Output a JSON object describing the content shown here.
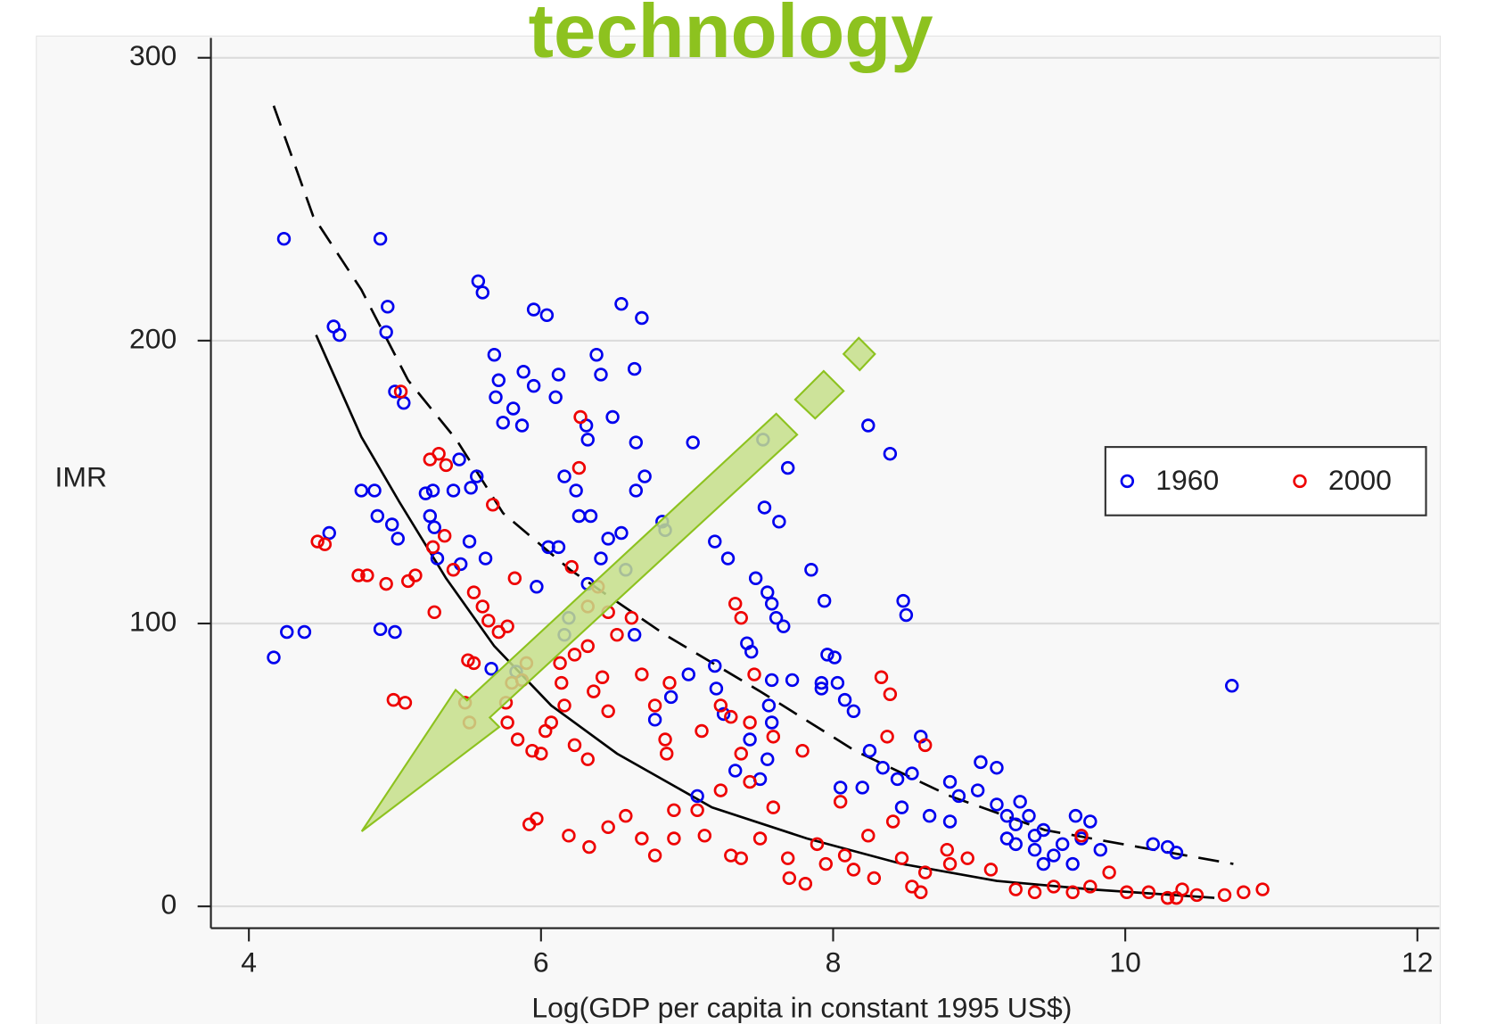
{
  "chart_data": {
    "type": "scatter",
    "title": "technology",
    "title_color": "#8dc21f",
    "xlabel": "Log(GDP per capita in constant 1995 US$)",
    "ylabel": "IMR",
    "xlim": [
      3.74,
      12.15
    ],
    "ylim": [
      -7.7,
      307
    ],
    "xticks": [
      4,
      6,
      8,
      10,
      12
    ],
    "yticks": [
      0,
      100,
      200,
      300
    ],
    "grid": true,
    "legend_position": "right",
    "series": [
      {
        "name": "1960",
        "color": "#0000ee",
        "x": [
          4.24,
          4.9,
          4.17,
          4.26,
          4.38,
          4.58,
          4.62,
          4.95,
          4.94,
          5.0,
          5.06,
          4.55,
          4.77,
          4.86,
          4.88,
          4.98,
          5.02,
          4.9,
          5.0,
          5.21,
          5.26,
          5.24,
          5.27,
          5.44,
          5.4,
          5.56,
          5.52,
          5.51,
          5.62,
          5.29,
          5.45,
          5.57,
          5.6,
          5.68,
          5.71,
          5.69,
          5.74,
          5.81,
          5.87,
          5.88,
          5.95,
          5.95,
          6.04,
          6.12,
          6.1,
          6.05,
          6.12,
          6.16,
          6.24,
          6.26,
          6.34,
          6.38,
          6.41,
          6.31,
          6.32,
          6.49,
          6.55,
          6.69,
          6.64,
          6.65,
          6.65,
          6.71,
          6.83,
          6.85,
          7.04,
          6.46,
          6.55,
          6.41,
          6.32,
          6.58,
          5.97,
          6.19,
          6.16,
          5.66,
          5.83,
          6.64,
          6.89,
          6.78,
          7.01,
          7.19,
          7.2,
          7.25,
          7.07,
          7.19,
          7.28,
          7.47,
          7.55,
          7.58,
          7.61,
          7.66,
          7.41,
          7.44,
          7.52,
          7.69,
          7.53,
          7.63,
          7.58,
          7.72,
          7.92,
          8.03,
          7.85,
          7.94,
          7.96,
          8.01,
          7.92,
          8.08,
          8.14,
          7.43,
          7.56,
          7.58,
          7.55,
          7.33,
          7.5,
          8.24,
          8.39,
          8.48,
          8.5,
          8.25,
          8.34,
          8.44,
          8.6,
          8.2,
          8.05,
          8.54,
          8.8,
          9.01,
          9.12,
          8.86,
          8.99,
          8.47,
          8.66,
          8.8,
          9.12,
          9.19,
          9.28,
          9.25,
          9.34,
          9.38,
          9.44,
          9.25,
          9.19,
          9.38,
          9.51,
          9.57,
          9.66,
          9.76,
          9.7,
          9.83,
          10.19,
          10.29,
          10.35,
          10.73,
          9.44,
          9.64
        ],
        "values": [
          236,
          236,
          88,
          97,
          97,
          205,
          202,
          212,
          203,
          182,
          178,
          132,
          147,
          147,
          138,
          135,
          130,
          98,
          97,
          146,
          147,
          138,
          134,
          158,
          147,
          152,
          148,
          129,
          123,
          123,
          121,
          221,
          217,
          195,
          186,
          180,
          171,
          176,
          170,
          189,
          184,
          211,
          209,
          188,
          180,
          127,
          127,
          152,
          147,
          138,
          138,
          195,
          188,
          170,
          165,
          173,
          213,
          208,
          190,
          164,
          147,
          152,
          136,
          133,
          164,
          130,
          132,
          123,
          114,
          119,
          113,
          102,
          96,
          84,
          83,
          96,
          74,
          66,
          82,
          85,
          77,
          68,
          39,
          129,
          123,
          116,
          111,
          107,
          102,
          99,
          93,
          90,
          165,
          155,
          141,
          136,
          80,
          80,
          79,
          79,
          119,
          108,
          89,
          88,
          77,
          73,
          69,
          59,
          71,
          65,
          52,
          48,
          45,
          170,
          160,
          108,
          103,
          55,
          49,
          45,
          60,
          42,
          42,
          47,
          44,
          51,
          49,
          39,
          41,
          35,
          32,
          30,
          36,
          32,
          37,
          29,
          32,
          25,
          27,
          22,
          24,
          20,
          18,
          22,
          32,
          30,
          24,
          20,
          22,
          21,
          19,
          78,
          15,
          15
        ]
      },
      {
        "name": "2000",
        "color": "#ee0000",
        "x": [
          4.47,
          4.52,
          4.75,
          4.81,
          4.94,
          5.09,
          5.14,
          4.99,
          5.07,
          5.04,
          5.27,
          5.24,
          5.3,
          5.35,
          5.34,
          5.26,
          5.4,
          5.48,
          5.51,
          5.5,
          5.54,
          5.67,
          5.54,
          5.6,
          5.64,
          5.71,
          5.77,
          5.82,
          5.8,
          5.87,
          5.76,
          5.77,
          5.84,
          5.9,
          5.94,
          6.0,
          6.03,
          6.07,
          6.13,
          6.14,
          6.16,
          6.23,
          6.27,
          6.26,
          6.21,
          6.32,
          6.39,
          6.32,
          6.36,
          6.42,
          6.46,
          6.23,
          6.32,
          6.46,
          6.52,
          6.62,
          6.69,
          6.78,
          6.85,
          6.86,
          6.88,
          7.1,
          7.23,
          7.33,
          7.37,
          7.46,
          7.3,
          7.43,
          7.37,
          7.59,
          7.79,
          8.39,
          8.33,
          8.37,
          8.63,
          5.92,
          5.97,
          6.19,
          6.33,
          6.46,
          6.58,
          6.69,
          6.78,
          6.91,
          6.91,
          7.07,
          7.12,
          7.23,
          7.3,
          7.37,
          7.43,
          7.5,
          7.59,
          7.69,
          7.7,
          7.81,
          7.89,
          7.95,
          8.05,
          8.08,
          8.14,
          8.24,
          8.28,
          8.41,
          8.47,
          8.54,
          8.6,
          8.63,
          8.78,
          8.8,
          8.92,
          9.08,
          9.25,
          9.38,
          9.51,
          9.64,
          9.7,
          9.76,
          9.89,
          10.01,
          10.16,
          10.29,
          10.39,
          10.49,
          10.68,
          10.81,
          10.94,
          10.35
        ],
        "values": [
          129,
          128,
          117,
          117,
          114,
          115,
          117,
          73,
          72,
          182,
          104,
          158,
          160,
          156,
          131,
          127,
          119,
          72,
          65,
          87,
          86,
          142,
          111,
          106,
          101,
          97,
          99,
          116,
          79,
          80,
          72,
          65,
          59,
          86,
          55,
          54,
          62,
          65,
          86,
          79,
          71,
          89,
          173,
          155,
          120,
          106,
          113,
          92,
          76,
          81,
          69,
          57,
          52,
          104,
          96,
          102,
          82,
          71,
          59,
          54,
          79,
          62,
          71,
          107,
          102,
          82,
          67,
          65,
          54,
          60,
          55,
          75,
          81,
          60,
          57,
          29,
          31,
          25,
          21,
          28,
          32,
          24,
          18,
          24,
          34,
          34,
          25,
          41,
          18,
          17,
          44,
          24,
          35,
          17,
          10,
          8,
          22,
          15,
          37,
          18,
          13,
          25,
          10,
          30,
          17,
          7,
          5,
          12,
          20,
          15,
          17,
          13,
          6,
          5,
          7,
          5,
          25,
          7,
          12,
          5,
          5,
          3,
          6,
          4,
          4,
          5,
          6,
          3
        ]
      }
    ],
    "lines": [
      {
        "style": "dashed",
        "color": "#000000",
        "x": [
          4.17,
          4.44,
          4.77,
          5.09,
          5.42,
          5.74,
          6.2,
          6.85,
          7.5,
          8.15,
          8.8,
          9.45,
          10.09,
          10.74
        ],
        "values": [
          283,
          244,
          218,
          186,
          165,
          139,
          119,
          96,
          76,
          55,
          39,
          27,
          21,
          15
        ]
      },
      {
        "style": "solid",
        "color": "#000000",
        "x": [
          4.46,
          4.77,
          5.03,
          5.35,
          5.68,
          6.07,
          6.52,
          7.17,
          7.82,
          8.47,
          9.12,
          9.77,
          10.61
        ],
        "values": [
          202,
          166,
          143,
          116,
          92,
          71,
          54,
          35,
          24,
          15,
          9,
          6,
          3
        ]
      }
    ]
  }
}
